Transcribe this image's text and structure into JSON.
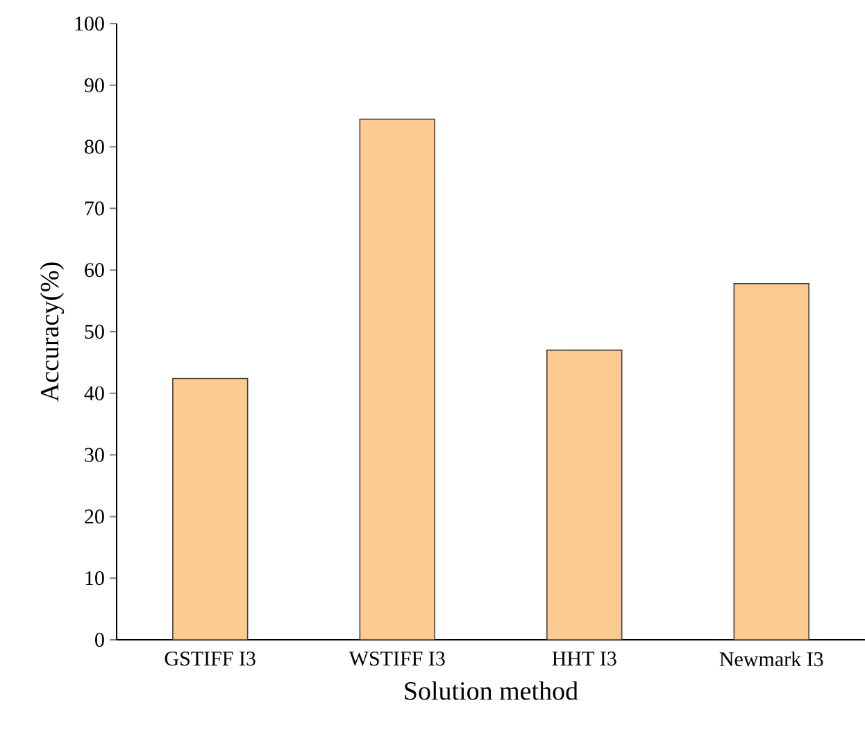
{
  "chart_data": {
    "type": "bar",
    "xlabel": "Solution method",
    "ylabel": "Accuracy(%)",
    "categories": [
      "GSTIFF I3",
      "WSTIFF I3",
      "HHT I3",
      "Newmark I3"
    ],
    "values": [
      42.4,
      84.5,
      47.0,
      57.8
    ],
    "color": "#fdca8f",
    "ylim": [
      0,
      100
    ],
    "yticks": [
      0,
      10,
      20,
      30,
      40,
      50,
      60,
      70,
      80,
      90,
      100
    ],
    "grid": false
  }
}
